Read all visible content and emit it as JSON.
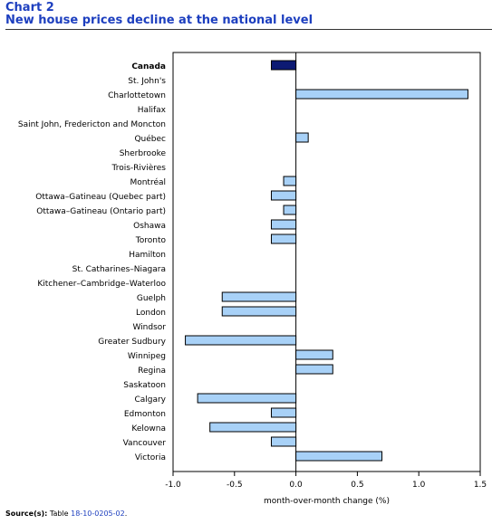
{
  "header": {
    "label": "Chart 2",
    "title": "New house prices decline at the national level"
  },
  "source": {
    "prefix": "Source(s):",
    "text": "Table",
    "link": "18-10-0205-02",
    "suffix": "."
  },
  "chart_data": {
    "type": "bar",
    "orientation": "horizontal",
    "categories": [
      "Canada",
      "St. John's",
      "Charlottetown",
      "Halifax",
      "Saint John, Fredericton and Moncton",
      "Québec",
      "Sherbrooke",
      "Trois-Rivières",
      "Montréal",
      "Ottawa–Gatineau (Quebec part)",
      "Ottawa–Gatineau (Ontario part)",
      "Oshawa",
      "Toronto",
      "Hamilton",
      "St. Catharines–Niagara",
      "Kitchener–Cambridge–Waterloo",
      "Guelph",
      "London",
      "Windsor",
      "Greater Sudbury",
      "Winnipeg",
      "Regina",
      "Saskatoon",
      "Calgary",
      "Edmonton",
      "Kelowna",
      "Vancouver",
      "Victoria"
    ],
    "values": [
      -0.2,
      0,
      1.4,
      0,
      0,
      0.1,
      0,
      0,
      -0.1,
      -0.2,
      -0.1,
      -0.2,
      -0.2,
      0,
      0,
      0,
      -0.6,
      -0.6,
      0,
      -0.9,
      0.3,
      0.3,
      0,
      -0.8,
      -0.2,
      -0.7,
      -0.2,
      0.7
    ],
    "highlight_category": "Canada",
    "xlabel": "month-over-month change (%)",
    "ylabel": "",
    "xlim": [
      -1.0,
      1.5
    ],
    "xticks": [
      -1.0,
      -0.5,
      0.0,
      0.5,
      1.0,
      1.5
    ],
    "xtick_labels": [
      "-1.0",
      "-0.5",
      "0.0",
      "0.5",
      "1.0",
      "1.5"
    ],
    "grid": false,
    "colors": {
      "highlight": "#0d1a73",
      "bar": "#a8d1f7",
      "bar_stroke": "#000000",
      "title": "#1d3fbf"
    }
  }
}
